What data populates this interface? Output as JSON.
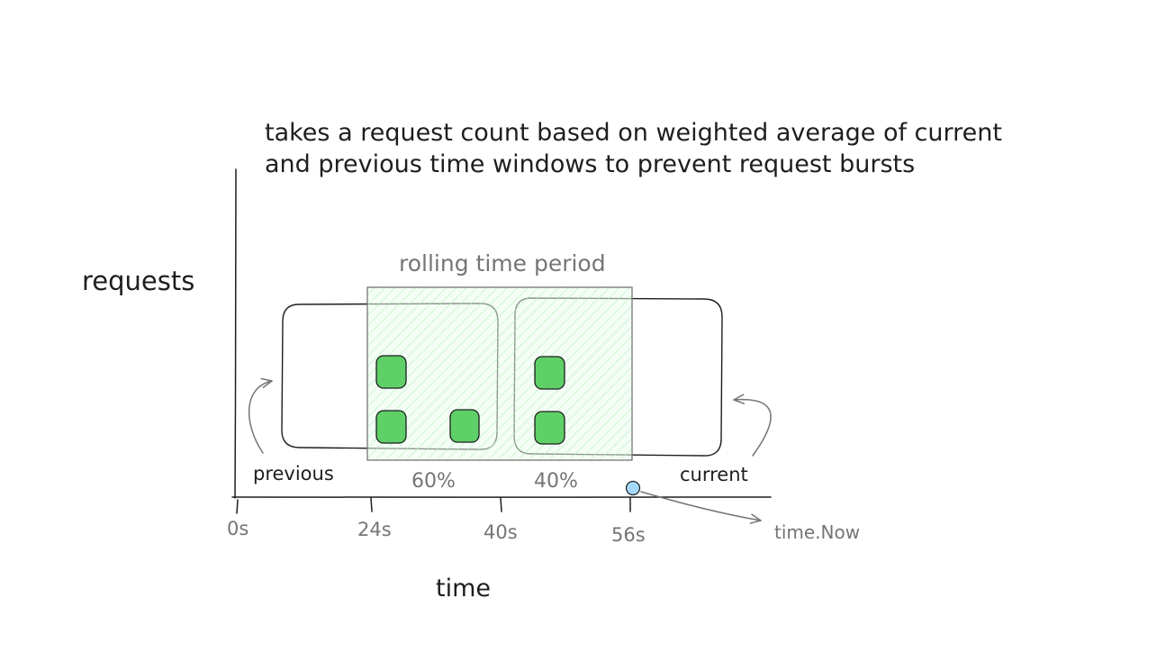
{
  "description": {
    "line1": "takes a request count based on weighted average of current",
    "line2": "and previous time windows to prevent request bursts"
  },
  "axes": {
    "y_label": "requests",
    "x_label": "time"
  },
  "window": {
    "label": "rolling time period",
    "previous_weight": "60%",
    "current_weight": "40%"
  },
  "buckets": {
    "previous_label": "previous",
    "current_label": "current"
  },
  "ticks": [
    "0s",
    "24s",
    "40s",
    "56s"
  ],
  "now_label": "time.Now",
  "colors": {
    "stroke": "#1e1e1e",
    "gray": "#757575",
    "request_fill": "#5fd068",
    "window_fill": "#ebfbee",
    "window_hatch": "#b2f2bb",
    "now_dot": "#a5d8ff"
  }
}
